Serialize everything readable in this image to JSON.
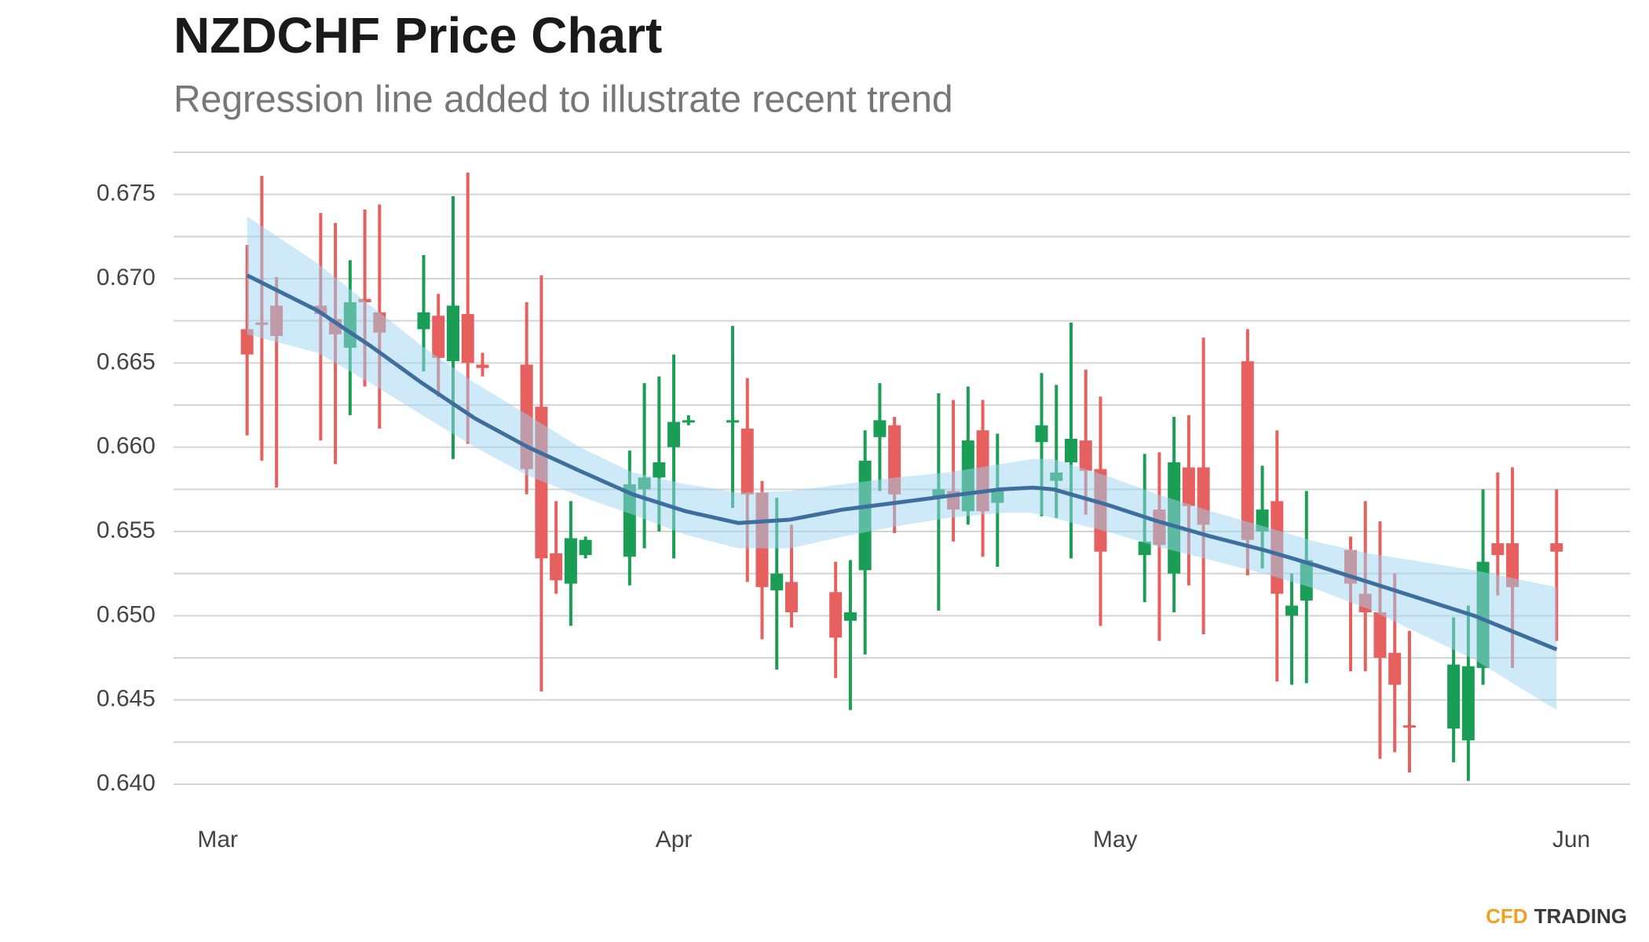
{
  "chart_data": {
    "type": "candlestick",
    "title": "NZDCHF Price Chart",
    "subtitle": "Regression line added to illustrate recent trend",
    "logo": [
      "CFD",
      "TRADING"
    ],
    "up_color": "#1a9e55",
    "down_color": "#e5605e",
    "xlim": [
      -3,
      96
    ],
    "xticks": [
      {
        "value": 0,
        "label": "Mar"
      },
      {
        "value": 31,
        "label": "Apr"
      },
      {
        "value": 61,
        "label": "May"
      },
      {
        "value": 92,
        "label": "Jun"
      }
    ],
    "ylim": [
      0.64,
      0.6775
    ],
    "yticks": [
      {
        "value": 0.64,
        "label": "0.640"
      },
      0.645,
      {
        "value": 0.65,
        "label": "0.650"
      },
      0.655,
      {
        "value": 0.66,
        "label": "0.660"
      },
      0.665,
      {
        "value": 0.67,
        "label": "0.670"
      },
      0.675
    ],
    "minor_yticks": [
      0.6425,
      0.6475,
      0.6525,
      0.6575,
      0.6625,
      0.6675,
      0.6725,
      0.6775
    ],
    "grid": true,
    "x": [
      2,
      3,
      4,
      7,
      8,
      9,
      10,
      11,
      14,
      15,
      16,
      17,
      18,
      21,
      22,
      23,
      24,
      25,
      28,
      29,
      30,
      31,
      32,
      35,
      36,
      37,
      38,
      39,
      42,
      43,
      44,
      45,
      46,
      49,
      50,
      51,
      52,
      53,
      56,
      57,
      58,
      59,
      60,
      63,
      64,
      65,
      66,
      67,
      70,
      71,
      72,
      73,
      74,
      77,
      78,
      79,
      80,
      81,
      84,
      85,
      86,
      87,
      88,
      91
    ],
    "open": [
      0.667,
      0.6674,
      0.6684,
      0.6684,
      0.6676,
      0.6659,
      0.6688,
      0.668,
      0.667,
      0.6678,
      0.6651,
      0.6679,
      0.6649,
      0.6649,
      0.6624,
      0.6537,
      0.6519,
      0.6536,
      0.6535,
      0.6575,
      0.6582,
      0.66,
      0.6615,
      0.6615,
      0.6611,
      0.6573,
      0.6515,
      0.652,
      0.6514,
      0.6497,
      0.6527,
      0.6606,
      0.6613,
      0.6571,
      0.6574,
      0.6562,
      0.661,
      0.6567,
      0.6603,
      0.658,
      0.6591,
      0.6604,
      0.6587,
      0.6536,
      0.6563,
      0.6525,
      0.6588,
      0.6588,
      0.6651,
      0.655,
      0.6568,
      0.65,
      0.6509,
      0.6539,
      0.6513,
      0.6502,
      0.6478,
      0.6435,
      0.6433,
      0.6426,
      0.6469,
      0.6543,
      0.6543,
      0.6543
    ],
    "high": [
      0.672,
      0.6761,
      0.6701,
      0.6739,
      0.6733,
      0.6711,
      0.6741,
      0.6744,
      0.6714,
      0.6691,
      0.6749,
      0.6763,
      0.6656,
      0.6686,
      0.6702,
      0.6568,
      0.6568,
      0.6547,
      0.6598,
      0.6638,
      0.6642,
      0.6655,
      0.6619,
      0.6672,
      0.6641,
      0.658,
      0.657,
      0.6554,
      0.6532,
      0.6533,
      0.661,
      0.6638,
      0.6618,
      0.6632,
      0.6628,
      0.6636,
      0.6628,
      0.6608,
      0.6644,
      0.6637,
      0.6674,
      0.6646,
      0.663,
      0.6596,
      0.6597,
      0.6618,
      0.6619,
      0.6665,
      0.667,
      0.6589,
      0.661,
      0.6525,
      0.6574,
      0.6547,
      0.6568,
      0.6556,
      0.6525,
      0.6491,
      0.6499,
      0.6506,
      0.6575,
      0.6585,
      0.6588,
      0.6575
    ],
    "low": [
      0.6607,
      0.6592,
      0.6576,
      0.6604,
      0.659,
      0.6619,
      0.6636,
      0.6611,
      0.6645,
      0.663,
      0.6593,
      0.6602,
      0.6642,
      0.6572,
      0.6455,
      0.6513,
      0.6494,
      0.6534,
      0.6518,
      0.654,
      0.655,
      0.6534,
      0.6613,
      0.6564,
      0.652,
      0.6486,
      0.6468,
      0.6493,
      0.6463,
      0.6444,
      0.6477,
      0.6574,
      0.6549,
      0.6503,
      0.6544,
      0.6554,
      0.6535,
      0.6529,
      0.6559,
      0.6558,
      0.6534,
      0.656,
      0.6494,
      0.6508,
      0.6485,
      0.6502,
      0.6518,
      0.6489,
      0.6524,
      0.6528,
      0.6461,
      0.6459,
      0.646,
      0.6467,
      0.6467,
      0.6415,
      0.6419,
      0.6407,
      0.6413,
      0.6402,
      0.6459,
      0.6512,
      0.6469,
      0.6485
    ],
    "close": [
      0.6655,
      0.6673,
      0.6666,
      0.6679,
      0.6667,
      0.6686,
      0.6686,
      0.6668,
      0.668,
      0.6653,
      0.6684,
      0.665,
      0.6647,
      0.6587,
      0.6534,
      0.6521,
      0.6546,
      0.6545,
      0.6578,
      0.6582,
      0.6591,
      0.6615,
      0.6616,
      0.6616,
      0.6572,
      0.6517,
      0.6525,
      0.6502,
      0.6487,
      0.6502,
      0.6592,
      0.6616,
      0.6572,
      0.6575,
      0.6563,
      0.6604,
      0.6562,
      0.6574,
      0.6613,
      0.6585,
      0.6605,
      0.6586,
      0.6538,
      0.6544,
      0.6542,
      0.6591,
      0.6565,
      0.6554,
      0.6545,
      0.6563,
      0.6513,
      0.6506,
      0.6533,
      0.6519,
      0.6502,
      0.6475,
      0.6459,
      0.6434,
      0.6471,
      0.647,
      0.6532,
      0.6536,
      0.6517,
      0.6538
    ],
    "regression": {
      "color": "#3d6e9e",
      "band_color": "#9dd3f0",
      "x": [
        2,
        6.8,
        10.4,
        13.9,
        17.5,
        21.1,
        24.6,
        28.2,
        31.8,
        35.4,
        38.9,
        42.5,
        46.1,
        49.6,
        53.2,
        55.4,
        56.8,
        60.4,
        63.9,
        67.5,
        71.1,
        74.6,
        78.2,
        81.8,
        85.4,
        91
      ],
      "values": [
        0.6702,
        0.6681,
        0.666,
        0.6638,
        0.6617,
        0.66,
        0.6586,
        0.6572,
        0.6562,
        0.6555,
        0.6557,
        0.6563,
        0.6567,
        0.6571,
        0.6575,
        0.6576,
        0.6575,
        0.6566,
        0.6556,
        0.6547,
        0.6539,
        0.653,
        0.652,
        0.651,
        0.65,
        0.648
      ],
      "upper": [
        0.6737,
        0.6709,
        0.6684,
        0.666,
        0.6638,
        0.6619,
        0.66,
        0.6585,
        0.6578,
        0.6573,
        0.6574,
        0.6578,
        0.6582,
        0.6585,
        0.659,
        0.6593,
        0.6593,
        0.6583,
        0.6572,
        0.6562,
        0.6553,
        0.6544,
        0.6537,
        0.6532,
        0.6527,
        0.6517
      ],
      "lower": [
        0.6667,
        0.6656,
        0.6638,
        0.6619,
        0.66,
        0.6583,
        0.6571,
        0.656,
        0.6548,
        0.654,
        0.654,
        0.6547,
        0.6553,
        0.6558,
        0.6561,
        0.6561,
        0.6558,
        0.655,
        0.6541,
        0.6533,
        0.6525,
        0.6516,
        0.6504,
        0.6489,
        0.6474,
        0.6444
      ]
    }
  }
}
